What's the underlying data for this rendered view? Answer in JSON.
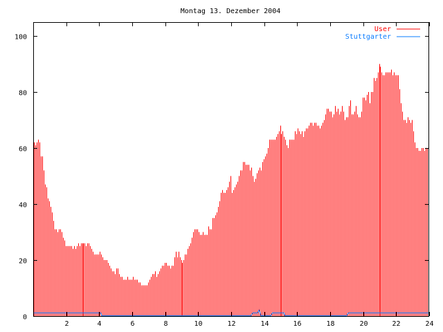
{
  "chart_data": {
    "type": "bar",
    "title": "Montag 13. Dezember 2004",
    "xlabel": "",
    "ylabel": "",
    "xlim": [
      0,
      24
    ],
    "ylim": [
      0,
      105
    ],
    "x_ticks": [
      2,
      4,
      6,
      8,
      10,
      12,
      14,
      16,
      18,
      20,
      22,
      24
    ],
    "y_ticks": [
      0,
      20,
      40,
      60,
      80,
      100
    ],
    "grid": false,
    "legend_position": "top-right",
    "x_step_hours": 0.08333,
    "series": [
      {
        "name": "User",
        "style": "impulses",
        "color": "#ff0000",
        "values": [
          62,
          61,
          62,
          63,
          62,
          57,
          57,
          52,
          47,
          46,
          42,
          41,
          39,
          37,
          34,
          31,
          31,
          30,
          31,
          31,
          30,
          28,
          27,
          25,
          25,
          25,
          25,
          25,
          24,
          25,
          24,
          25,
          26,
          25,
          26,
          26,
          26,
          26,
          25,
          26,
          26,
          25,
          24,
          23,
          22,
          22,
          22,
          22,
          23,
          22,
          21,
          20,
          20,
          20,
          19,
          18,
          17,
          16,
          16,
          15,
          17,
          17,
          15,
          14,
          14,
          13,
          13,
          13,
          14,
          13,
          13,
          13,
          14,
          13,
          13,
          13,
          12,
          12,
          11,
          11,
          11,
          11,
          11,
          12,
          13,
          14,
          15,
          15,
          16,
          14,
          15,
          16,
          17,
          18,
          18,
          19,
          19,
          18,
          18,
          17,
          18,
          18,
          21,
          23,
          21,
          23,
          21,
          20,
          19,
          20,
          22,
          22,
          24,
          25,
          26,
          28,
          30,
          31,
          31,
          31,
          30,
          29,
          29,
          30,
          29,
          29,
          29,
          32,
          31,
          31,
          35,
          35,
          36,
          37,
          39,
          41,
          44,
          45,
          44,
          44,
          45,
          46,
          48,
          50,
          44,
          45,
          46,
          47,
          48,
          50,
          52,
          52,
          55,
          55,
          54,
          54,
          54,
          52,
          53,
          50,
          48,
          49,
          51,
          52,
          53,
          52,
          55,
          56,
          57,
          58,
          60,
          63,
          63,
          63,
          63,
          63,
          64,
          65,
          66,
          68,
          65,
          66,
          64,
          63,
          61,
          60,
          63,
          63,
          63,
          63,
          66,
          65,
          67,
          66,
          65,
          66,
          64,
          66,
          67,
          67,
          68,
          69,
          69,
          68,
          69,
          69,
          68,
          68,
          67,
          68,
          69,
          70,
          72,
          74,
          74,
          73,
          73,
          71,
          72,
          75,
          73,
          74,
          72,
          73,
          75,
          73,
          70,
          71,
          71,
          75,
          77,
          72,
          72,
          73,
          75,
          72,
          71,
          71,
          73,
          78,
          78,
          77,
          79,
          80,
          76,
          80,
          80,
          85,
          84,
          85,
          87,
          90,
          89,
          87,
          86,
          86,
          87,
          87,
          87,
          87,
          88,
          86,
          87,
          86,
          86,
          86,
          81,
          76,
          73,
          70,
          70,
          69,
          71,
          70,
          69,
          70,
          66,
          62,
          60,
          60,
          59,
          59,
          60,
          60,
          59,
          60,
          60,
          60
        ]
      },
      {
        "name": "Stuttgarter",
        "style": "lines",
        "color": "#0a7cff",
        "points": [
          [
            0,
            1
          ],
          [
            4.1,
            1
          ],
          [
            4.15,
            0
          ],
          [
            13.2,
            0
          ],
          [
            13.3,
            1
          ],
          [
            13.6,
            1
          ],
          [
            13.7,
            2
          ],
          [
            13.8,
            0
          ],
          [
            14.4,
            0
          ],
          [
            14.5,
            1
          ],
          [
            15.2,
            1
          ],
          [
            15.25,
            0
          ],
          [
            19.0,
            0
          ],
          [
            19.1,
            1
          ],
          [
            24,
            1
          ]
        ]
      }
    ]
  }
}
